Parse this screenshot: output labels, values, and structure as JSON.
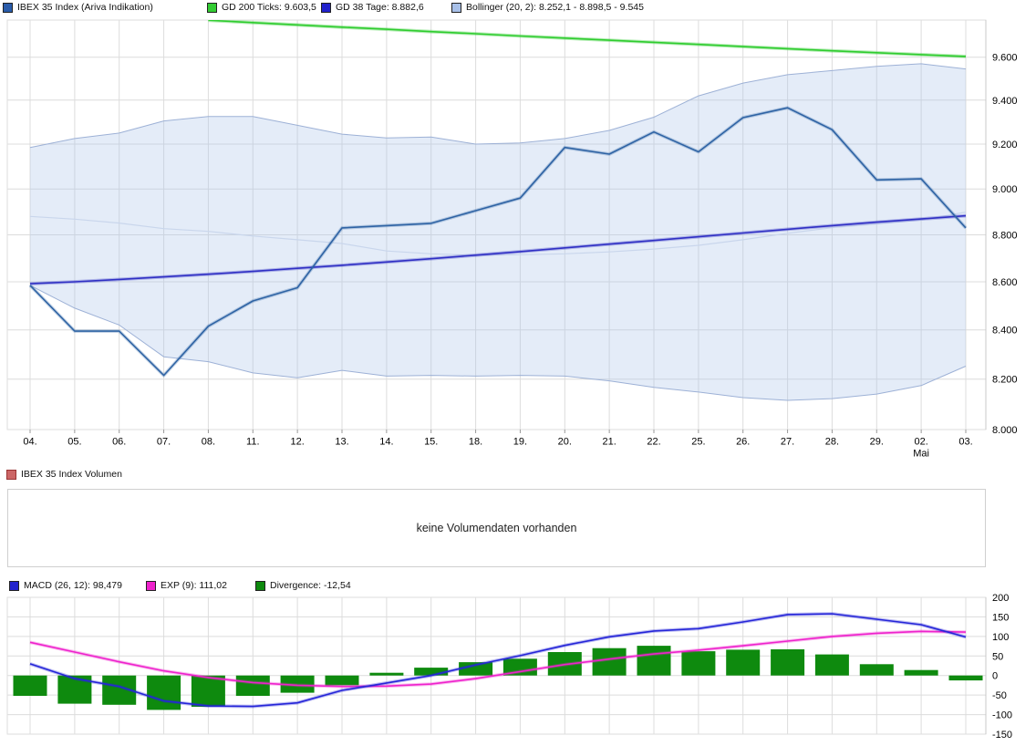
{
  "page": {
    "background": "#ffffff"
  },
  "price_panel": {
    "legend": [
      {
        "label": "IBEX 35 Index (Ariva Indikation)",
        "color": "#2a5caa",
        "border": "#222222"
      },
      {
        "label": "GD 200 Ticks: 9.603,5",
        "color": "#33cc33",
        "border": "#222222"
      },
      {
        "label": "GD 38 Tage: 8.882,6",
        "color": "#2222cc",
        "border": "#222222"
      },
      {
        "label": "Bollinger (20, 2): 8.252,1 - 8.898,5 - 9.545",
        "color": "#a8c0e8",
        "border": "#222222"
      }
    ]
  },
  "volume_panel": {
    "legend": [
      {
        "label": "IBEX 35 Index Volumen",
        "color": "#cc6666",
        "border": "#993333"
      }
    ],
    "empty_message": "keine Volumendaten vorhanden"
  },
  "macd_panel": {
    "legend": [
      {
        "label": "MACD (26, 12): 98,479",
        "color": "#2222cc",
        "border": "#222222"
      },
      {
        "label": "EXP (9): 111,02",
        "color": "#ee22cc",
        "border": "#222222"
      },
      {
        "label": "Divergence: -12,54",
        "color": "#0e8a0e",
        "border": "#222222"
      }
    ]
  },
  "colors": {
    "gridline": "#dcdcdc",
    "frame": "#dedede",
    "axis_line": "#c8c8c8",
    "tick": "#999999",
    "band_fill": "rgba(170,196,232,0.32)",
    "text": "#000000"
  },
  "chart_data": [
    {
      "panel": "price",
      "type": "line",
      "y_scale": "log",
      "ylim": [
        8000,
        9790
      ],
      "grid": true,
      "legend_position": "top",
      "x_labels": [
        "04.",
        "05.",
        "06.",
        "07.",
        "08.",
        "11.",
        "12.",
        "13.",
        "14.",
        "15.",
        "18.",
        "19.",
        "20.",
        "21.",
        "22.",
        "25.",
        "26.",
        "27.",
        "28.",
        "29.",
        "02.",
        "03."
      ],
      "x_month_label": {
        "index": 20,
        "label": "Mai"
      },
      "y_ticks": [
        {
          "value": 9600,
          "label": "9.600"
        },
        {
          "value": 9400,
          "label": "9.400"
        },
        {
          "value": 9200,
          "label": "9.200"
        },
        {
          "value": 9000,
          "label": "9.000"
        },
        {
          "value": 8800,
          "label": "8.800"
        },
        {
          "value": 8600,
          "label": "8.600"
        },
        {
          "value": 8400,
          "label": "8.400"
        },
        {
          "value": 8200,
          "label": "8.200"
        },
        {
          "value": 8000,
          "label": "8.000"
        }
      ],
      "band": {
        "upper_series": 0,
        "lower_series": 2,
        "fill": "rgba(170,196,232,0.32)"
      },
      "series": [
        {
          "name": "Bollinger (20, 2) upper",
          "type": "line",
          "color": "#9db1d6",
          "width": 1,
          "values": [
            9185,
            9225,
            9250,
            9305,
            9325,
            9325,
            9285,
            9245,
            9228,
            9232,
            9200,
            9205,
            9225,
            9262,
            9322,
            9420,
            9479,
            9518,
            9537,
            9557,
            9569,
            9545
          ]
        },
        {
          "name": "Bollinger (20, 2) middle",
          "type": "line",
          "color": "#c9d6ec",
          "width": 1.2,
          "values": [
            8880,
            8868,
            8851,
            8827,
            8815,
            8795,
            8779,
            8763,
            8731,
            8719,
            8713,
            8715,
            8719,
            8727,
            8739,
            8755,
            8779,
            8807,
            8831,
            8847,
            8864,
            8898.5
          ]
        },
        {
          "name": "Bollinger (20, 2) lower",
          "type": "line",
          "color": "#9db1d6",
          "width": 1,
          "values": [
            8585,
            8490,
            8420,
            8290,
            8270,
            8225,
            8205,
            8235,
            8212,
            8215,
            8212,
            8215,
            8212,
            8193,
            8167,
            8148,
            8126,
            8115,
            8122,
            8140,
            8174,
            8252.1
          ]
        },
        {
          "name": "GD 200 Ticks",
          "type": "line",
          "color": "#2ecc2e",
          "halo": "rgba(46,204,46,0.35)",
          "width": 1.6,
          "values": [
            null,
            null,
            null,
            null,
            9775,
            9764,
            9753,
            9742,
            9732,
            9721,
            9711,
            9700,
            9690,
            9680,
            9670,
            9660,
            9650,
            9640,
            9630,
            9621,
            9612,
            9603.5
          ]
        },
        {
          "name": "GD 38 Tage",
          "type": "line",
          "color": "#2f2fc4",
          "halo": "rgba(47,47,196,0.3)",
          "width": 1.6,
          "values": [
            8592,
            8600,
            8610,
            8621,
            8632,
            8644,
            8657,
            8670,
            8684,
            8698,
            8713,
            8728,
            8744,
            8760,
            8776,
            8792,
            8808,
            8824,
            8840,
            8855,
            8869,
            8882.6
          ]
        },
        {
          "name": "IBEX 35 Index (Ariva Indikation)",
          "type": "line",
          "color": "#2e63a4",
          "halo": "rgba(46,99,164,0.28)",
          "width": 1.6,
          "values": [
            8585,
            8395,
            8395,
            8215,
            8415,
            8520,
            8575,
            8830,
            8840,
            8850,
            8905,
            8960,
            9185,
            9155,
            9255,
            9165,
            9320,
            9365,
            9265,
            9040,
            9045,
            8830
          ]
        }
      ]
    },
    {
      "panel": "macd",
      "type": "mixed",
      "y_scale": "linear",
      "ylim": [
        -150,
        200
      ],
      "grid": true,
      "y_ticks": [
        {
          "value": 200,
          "label": "200"
        },
        {
          "value": 150,
          "label": "150"
        },
        {
          "value": 100,
          "label": "100"
        },
        {
          "value": 50,
          "label": "50"
        },
        {
          "value": 0,
          "label": "0"
        },
        {
          "value": -50,
          "label": "-50"
        },
        {
          "value": -100,
          "label": "-100"
        },
        {
          "value": -150,
          "label": "-150"
        }
      ],
      "series": [
        {
          "name": "Divergence",
          "type": "bar",
          "color": "#0e8a0e",
          "values": [
            -52,
            -72,
            -75,
            -88,
            -80,
            -52,
            -44,
            -25,
            7,
            20,
            34,
            43,
            60,
            70,
            76,
            62,
            66,
            67,
            54,
            29,
            14,
            -12.54
          ]
        },
        {
          "name": "EXP (9)",
          "type": "line",
          "color": "#ee22cc",
          "halo": "rgba(238,34,204,0.3)",
          "width": 1.6,
          "values": [
            85,
            60,
            35,
            12,
            -5,
            -18,
            -25,
            -28,
            -27,
            -22,
            -8,
            10,
            28,
            42,
            55,
            65,
            76,
            88,
            100,
            108,
            113,
            111.02
          ]
        },
        {
          "name": "MACD (26, 12)",
          "type": "line",
          "color": "#2525d8",
          "halo": "rgba(37,37,216,0.3)",
          "width": 1.6,
          "values": [
            30,
            -8,
            -28,
            -65,
            -78,
            -79,
            -70,
            -38,
            -19,
            0,
            27,
            51,
            77,
            99,
            114,
            120,
            137,
            156,
            158,
            144,
            130,
            98.479
          ]
        }
      ]
    }
  ]
}
